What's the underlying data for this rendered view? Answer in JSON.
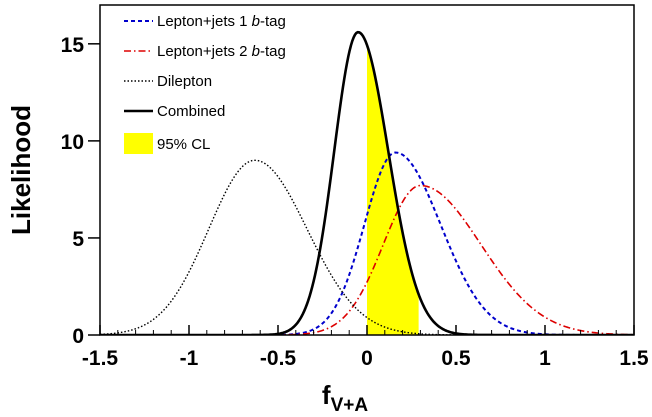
{
  "chart_data": {
    "type": "line",
    "xlabel_main": "f",
    "xlabel_sub": "V+A",
    "ylabel": "Likelihood",
    "xlim": [
      -1.5,
      1.5
    ],
    "ylim": [
      0,
      17
    ],
    "x_ticks": [
      {
        "v": -1.5,
        "label": "-1.5"
      },
      {
        "v": -1.0,
        "label": "-1"
      },
      {
        "v": -0.5,
        "label": "-0.5"
      },
      {
        "v": 0.0,
        "label": "0"
      },
      {
        "v": 0.5,
        "label": "0.5"
      },
      {
        "v": 1.0,
        "label": "1"
      },
      {
        "v": 1.5,
        "label": "1.5"
      }
    ],
    "y_ticks": [
      {
        "v": 0,
        "label": "0"
      },
      {
        "v": 5,
        "label": "5"
      },
      {
        "v": 10,
        "label": "10"
      },
      {
        "v": 15,
        "label": "15"
      }
    ],
    "grid": false,
    "legend_position": "top-left",
    "legend": {
      "line1": {
        "prefix": "Lepton+jets 1 ",
        "italic": "b",
        "suffix": "-tag"
      },
      "line2": {
        "prefix": "Lepton+jets 2 ",
        "italic": "b",
        "suffix": "-tag"
      },
      "line3": "Dilepton",
      "line4": "Combined",
      "band": "95% CL"
    },
    "series": [
      {
        "name": "Lepton+jets 1 b-tag",
        "color": "#0000cc",
        "style": "dashed",
        "peak_x": 0.16,
        "peak_y": 9.4,
        "x": [
          -0.7,
          -0.5,
          -0.4,
          -0.3,
          -0.2,
          -0.1,
          0.0,
          0.1,
          0.16,
          0.25,
          0.35,
          0.45,
          0.55,
          0.65,
          0.75,
          0.9,
          1.1
        ],
        "y": [
          0.0,
          0.2,
          0.6,
          1.4,
          2.7,
          4.5,
          6.6,
          8.6,
          9.4,
          8.9,
          7.2,
          5.0,
          2.9,
          1.4,
          0.6,
          0.1,
          0.0
        ]
      },
      {
        "name": "Lepton+jets 2 b-tag",
        "color": "#dd0000",
        "style": "dashdot",
        "peak_x": 0.3,
        "peak_y": 7.7,
        "x": [
          -0.6,
          -0.4,
          -0.2,
          -0.1,
          0.0,
          0.1,
          0.2,
          0.3,
          0.4,
          0.5,
          0.6,
          0.7,
          0.8,
          0.9,
          1.0,
          1.1,
          1.3,
          1.5
        ],
        "y": [
          0.0,
          0.3,
          1.3,
          2.3,
          3.6,
          5.1,
          6.6,
          7.7,
          7.5,
          6.7,
          5.4,
          4.0,
          2.7,
          1.7,
          0.9,
          0.45,
          0.1,
          0.0
        ]
      },
      {
        "name": "Dilepton",
        "color": "#000000",
        "style": "dotted",
        "peak_x": -0.63,
        "peak_y": 9.0,
        "x": [
          -1.5,
          -1.3,
          -1.1,
          -1.0,
          -0.9,
          -0.8,
          -0.7,
          -0.63,
          -0.5,
          -0.4,
          -0.3,
          -0.2,
          -0.1,
          0.0,
          0.1,
          0.2
        ],
        "y": [
          0.0,
          0.3,
          1.9,
          3.4,
          5.3,
          7.2,
          8.6,
          9.0,
          8.3,
          6.9,
          5.0,
          3.2,
          1.8,
          0.8,
          0.3,
          0.1
        ]
      },
      {
        "name": "Combined",
        "color": "#000000",
        "style": "solid",
        "peak_x": -0.05,
        "peak_y": 15.6,
        "x": [
          -0.5,
          -0.4,
          -0.3,
          -0.2,
          -0.1,
          -0.05,
          0.0,
          0.1,
          0.2,
          0.3,
          0.4,
          0.5
        ],
        "y": [
          0.0,
          0.3,
          2.5,
          8.2,
          14.6,
          15.6,
          14.8,
          10.3,
          5.3,
          2.1,
          0.6,
          0.1
        ]
      }
    ],
    "band_95cl": {
      "x_from": 0.0,
      "x_to": 0.29,
      "color": "#ffff00"
    }
  }
}
